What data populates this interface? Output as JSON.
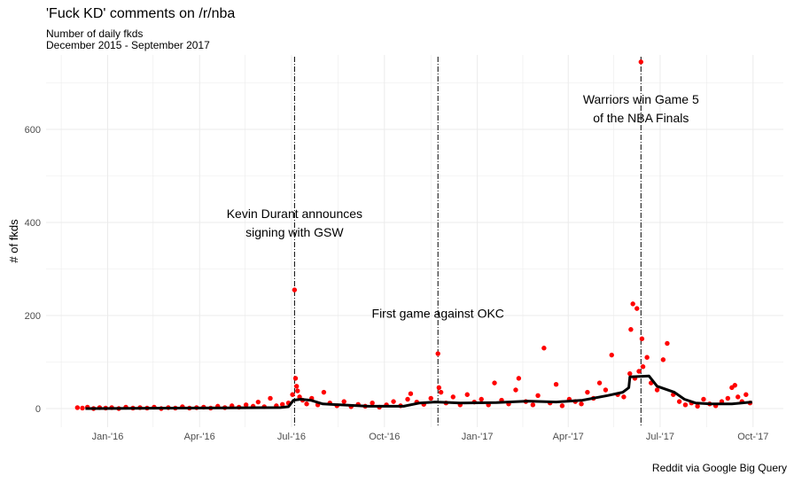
{
  "chart_data": {
    "type": "scatter",
    "title": "'Fuck KD' comments on /r/nba",
    "subtitle_lines": [
      "Number of daily fkds",
      "December 2015 - September 2017"
    ],
    "caption": "Reddit via Google Big Query",
    "ylabel": "# of fkds",
    "xlabel": "",
    "xlim": [
      "2015-11-01",
      "2017-10-31"
    ],
    "ylim": [
      -40,
      760
    ],
    "x_ticks": [
      {
        "date": "2016-01-01",
        "label": "Jan-'16"
      },
      {
        "date": "2016-04-01",
        "label": "Apr-'16"
      },
      {
        "date": "2016-07-01",
        "label": "Jul-'16"
      },
      {
        "date": "2016-10-01",
        "label": "Oct-'16"
      },
      {
        "date": "2017-01-01",
        "label": "Jan-'17"
      },
      {
        "date": "2017-04-01",
        "label": "Apr-'17"
      },
      {
        "date": "2017-07-01",
        "label": "Jul-'17"
      },
      {
        "date": "2017-10-01",
        "label": "Oct-'17"
      }
    ],
    "y_ticks": [
      0,
      200,
      400,
      600
    ],
    "grid": true,
    "colors": {
      "points": "#ff0000",
      "trend": "#000000",
      "grid": "#ebebeb"
    },
    "annotations": [
      {
        "date": "2016-07-04",
        "lines": [
          "Kevin Durant announces",
          "signing with GSW"
        ],
        "text_y": 410
      },
      {
        "date": "2016-11-23",
        "lines": [
          "First game against OKC"
        ],
        "text_y": 195
      },
      {
        "date": "2017-06-12",
        "lines": [
          "Warriors win Game 5",
          "of the NBA Finals"
        ],
        "text_y": 655
      }
    ],
    "points": [
      [
        "2015-12-02",
        2
      ],
      [
        "2015-12-07",
        1
      ],
      [
        "2015-12-12",
        3
      ],
      [
        "2015-12-18",
        0
      ],
      [
        "2015-12-24",
        2
      ],
      [
        "2015-12-30",
        1
      ],
      [
        "2016-01-05",
        2
      ],
      [
        "2016-01-12",
        0
      ],
      [
        "2016-01-19",
        3
      ],
      [
        "2016-01-26",
        1
      ],
      [
        "2016-02-02",
        2
      ],
      [
        "2016-02-09",
        1
      ],
      [
        "2016-02-16",
        3
      ],
      [
        "2016-02-23",
        0
      ],
      [
        "2016-03-01",
        2
      ],
      [
        "2016-03-08",
        1
      ],
      [
        "2016-03-15",
        4
      ],
      [
        "2016-03-22",
        1
      ],
      [
        "2016-03-29",
        2
      ],
      [
        "2016-04-05",
        3
      ],
      [
        "2016-04-12",
        1
      ],
      [
        "2016-04-19",
        5
      ],
      [
        "2016-04-26",
        2
      ],
      [
        "2016-05-03",
        6
      ],
      [
        "2016-05-10",
        3
      ],
      [
        "2016-05-17",
        8
      ],
      [
        "2016-05-24",
        5
      ],
      [
        "2016-05-29",
        14
      ],
      [
        "2016-06-04",
        4
      ],
      [
        "2016-06-10",
        22
      ],
      [
        "2016-06-16",
        6
      ],
      [
        "2016-06-22",
        9
      ],
      [
        "2016-06-28",
        12
      ],
      [
        "2016-07-02",
        30
      ],
      [
        "2016-07-04",
        255
      ],
      [
        "2016-07-05",
        65
      ],
      [
        "2016-07-06",
        48
      ],
      [
        "2016-07-07",
        38
      ],
      [
        "2016-07-09",
        25
      ],
      [
        "2016-07-12",
        18
      ],
      [
        "2016-07-16",
        10
      ],
      [
        "2016-07-21",
        22
      ],
      [
        "2016-07-27",
        8
      ],
      [
        "2016-08-02",
        35
      ],
      [
        "2016-08-08",
        12
      ],
      [
        "2016-08-15",
        6
      ],
      [
        "2016-08-22",
        15
      ],
      [
        "2016-08-29",
        4
      ],
      [
        "2016-09-05",
        9
      ],
      [
        "2016-09-12",
        5
      ],
      [
        "2016-09-19",
        12
      ],
      [
        "2016-09-26",
        3
      ],
      [
        "2016-10-03",
        8
      ],
      [
        "2016-10-10",
        15
      ],
      [
        "2016-10-17",
        6
      ],
      [
        "2016-10-24",
        20
      ],
      [
        "2016-10-27",
        32
      ],
      [
        "2016-11-02",
        14
      ],
      [
        "2016-11-09",
        9
      ],
      [
        "2016-11-16",
        22
      ],
      [
        "2016-11-23",
        118
      ],
      [
        "2016-11-24",
        45
      ],
      [
        "2016-11-26",
        35
      ],
      [
        "2016-12-01",
        12
      ],
      [
        "2016-12-08",
        25
      ],
      [
        "2016-12-15",
        8
      ],
      [
        "2016-12-22",
        30
      ],
      [
        "2016-12-29",
        14
      ],
      [
        "2017-01-05",
        20
      ],
      [
        "2017-01-12",
        8
      ],
      [
        "2017-01-18",
        55
      ],
      [
        "2017-01-25",
        18
      ],
      [
        "2017-02-01",
        10
      ],
      [
        "2017-02-08",
        40
      ],
      [
        "2017-02-11",
        65
      ],
      [
        "2017-02-18",
        15
      ],
      [
        "2017-02-25",
        8
      ],
      [
        "2017-03-02",
        28
      ],
      [
        "2017-03-08",
        130
      ],
      [
        "2017-03-14",
        12
      ],
      [
        "2017-03-20",
        52
      ],
      [
        "2017-03-26",
        6
      ],
      [
        "2017-04-02",
        20
      ],
      [
        "2017-04-08",
        15
      ],
      [
        "2017-04-14",
        10
      ],
      [
        "2017-04-20",
        35
      ],
      [
        "2017-04-26",
        22
      ],
      [
        "2017-05-02",
        55
      ],
      [
        "2017-05-08",
        40
      ],
      [
        "2017-05-14",
        115
      ],
      [
        "2017-05-20",
        30
      ],
      [
        "2017-05-26",
        25
      ],
      [
        "2017-06-01",
        75
      ],
      [
        "2017-06-02",
        170
      ],
      [
        "2017-06-04",
        225
      ],
      [
        "2017-06-06",
        65
      ],
      [
        "2017-06-08",
        215
      ],
      [
        "2017-06-10",
        80
      ],
      [
        "2017-06-12",
        745
      ],
      [
        "2017-06-13",
        150
      ],
      [
        "2017-06-14",
        90
      ],
      [
        "2017-06-18",
        110
      ],
      [
        "2017-06-22",
        55
      ],
      [
        "2017-06-28",
        40
      ],
      [
        "2017-07-04",
        105
      ],
      [
        "2017-07-08",
        140
      ],
      [
        "2017-07-14",
        30
      ],
      [
        "2017-07-20",
        15
      ],
      [
        "2017-07-26",
        8
      ],
      [
        "2017-08-01",
        12
      ],
      [
        "2017-08-07",
        5
      ],
      [
        "2017-08-13",
        20
      ],
      [
        "2017-08-19",
        10
      ],
      [
        "2017-08-25",
        6
      ],
      [
        "2017-08-31",
        15
      ],
      [
        "2017-09-06",
        22
      ],
      [
        "2017-09-10",
        45
      ],
      [
        "2017-09-13",
        50
      ],
      [
        "2017-09-16",
        25
      ],
      [
        "2017-09-20",
        15
      ],
      [
        "2017-09-24",
        30
      ],
      [
        "2017-09-28",
        12
      ]
    ],
    "trend": [
      [
        "2015-12-10",
        0
      ],
      [
        "2016-03-01",
        1
      ],
      [
        "2016-06-20",
        2
      ],
      [
        "2016-06-28",
        4
      ],
      [
        "2016-07-03",
        18
      ],
      [
        "2016-07-10",
        20
      ],
      [
        "2016-07-20",
        18
      ],
      [
        "2016-08-01",
        10
      ],
      [
        "2016-09-15",
        5
      ],
      [
        "2016-10-20",
        5
      ],
      [
        "2016-11-05",
        12
      ],
      [
        "2016-11-20",
        14
      ],
      [
        "2016-12-15",
        12
      ],
      [
        "2017-01-20",
        13
      ],
      [
        "2017-02-20",
        16
      ],
      [
        "2017-03-20",
        14
      ],
      [
        "2017-04-15",
        18
      ],
      [
        "2017-05-10",
        28
      ],
      [
        "2017-05-25",
        35
      ],
      [
        "2017-05-31",
        45
      ],
      [
        "2017-06-01",
        68
      ],
      [
        "2017-06-20",
        70
      ],
      [
        "2017-06-28",
        48
      ],
      [
        "2017-07-15",
        35
      ],
      [
        "2017-07-25",
        20
      ],
      [
        "2017-08-05",
        12
      ],
      [
        "2017-08-20",
        10
      ],
      [
        "2017-09-10",
        10
      ],
      [
        "2017-09-30",
        14
      ]
    ]
  }
}
